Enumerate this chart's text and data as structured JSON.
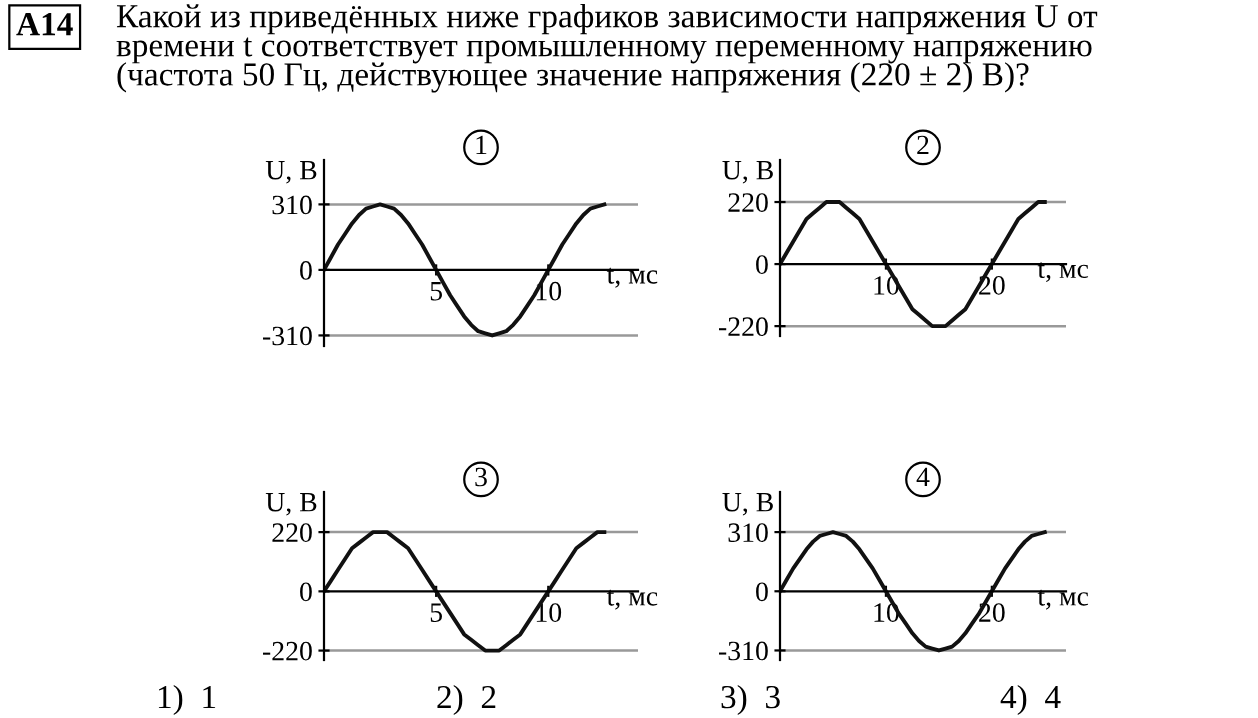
{
  "chart_data": [
    {
      "type": "line",
      "title": "1",
      "xlabel": "t, мс",
      "ylabel": "U, В",
      "annotations": [
        "A14",
        "Какой из приведённых ниже графиков зависимости напряжения U от\nвремени t соответствует промышленному переменному напряжению\n(частота 50 Гц, действующее значение напряжения (220 ± 2) В)?",
        "1)  1",
        "2)  2",
        "3)  3",
        "4)  4"
      ],
      "series": [
        {
          "color": "#111111",
          "x": [
            0,
            0.3125,
            0.625,
            0.9375,
            1.25,
            1.5625,
            1.875,
            2.1875,
            2.5,
            2.8125,
            3.125,
            3.4375,
            3.75,
            4.0625,
            4.375,
            4.6875,
            5,
            5.3125,
            5.625,
            5.9375,
            6.25,
            6.5625,
            6.875,
            7.1875,
            7.5,
            7.8125,
            8.125,
            8.4375,
            8.75,
            9.0625,
            9.375,
            9.6875,
            10,
            10.3125,
            10.625,
            10.9375,
            11.25,
            11.5625,
            11.875,
            12.1875,
            12.5
          ],
          "values": [
            0,
            60,
            120,
            170,
            220,
            260,
            290,
            300,
            310,
            300,
            290,
            260,
            220,
            170,
            120,
            60,
            0,
            -60,
            -120,
            -170,
            -220,
            -260,
            -290,
            -300,
            -310,
            -300,
            -290,
            -260,
            -220,
            -170,
            -120,
            -60,
            0,
            60,
            120,
            170,
            220,
            260,
            290,
            300,
            310
          ]
        }
      ],
      "xlim": [
        0,
        14
      ],
      "ylim": [
        -360,
        520
      ],
      "xticks": [
        5,
        10
      ],
      "yticks": [
        -310,
        0,
        310
      ],
      "ref_lines": [
        {
          "axis": "y",
          "value": 310,
          "color": "#999999"
        },
        {
          "axis": "y",
          "value": -310,
          "color": "#999999"
        }
      ]
    },
    {
      "type": "line",
      "title": "2",
      "xlabel": "t, мс",
      "ylabel": "U, В",
      "series": [
        {
          "color": "#111111",
          "x": [
            0,
            0.625,
            1.25,
            1.875,
            2.5,
            3.125,
            3.75,
            4.375,
            5,
            5.625,
            6.25,
            6.875,
            7.5,
            8.125,
            8.75,
            9.375,
            10,
            10.625,
            11.25,
            11.875,
            12.5,
            13.125,
            13.75,
            14.375,
            15,
            15.625,
            16.25,
            16.875,
            17.5,
            18.125,
            18.75,
            19.375,
            20,
            20.625,
            21.25,
            21.875,
            22.5,
            23.125,
            23.75,
            24.375,
            25
          ],
          "values": [
            0,
            40,
            80,
            120,
            160,
            180,
            200,
            220,
            220,
            220,
            200,
            180,
            160,
            120,
            80,
            40,
            0,
            -40,
            -80,
            -120,
            -160,
            -180,
            -200,
            -220,
            -220,
            -220,
            -200,
            -180,
            -160,
            -120,
            -80,
            -40,
            0,
            40,
            80,
            120,
            160,
            180,
            200,
            220,
            220
          ]
        }
      ],
      "xlim": [
        0,
        27
      ],
      "ylim": [
        -255,
        369
      ],
      "xticks": [
        10,
        20
      ],
      "yticks": [
        -220,
        0,
        220
      ],
      "ref_lines": [
        {
          "axis": "y",
          "value": 220,
          "color": "#999999"
        },
        {
          "axis": "y",
          "value": -220,
          "color": "#999999"
        }
      ]
    },
    {
      "type": "line",
      "title": "3",
      "xlabel": "t, мс",
      "ylabel": "U, В",
      "series": [
        {
          "color": "#111111",
          "x": [
            0,
            0.3125,
            0.625,
            0.9375,
            1.25,
            1.5625,
            1.875,
            2.1875,
            2.5,
            2.8125,
            3.125,
            3.4375,
            3.75,
            4.0625,
            4.375,
            4.6875,
            5,
            5.3125,
            5.625,
            5.9375,
            6.25,
            6.5625,
            6.875,
            7.1875,
            7.5,
            7.8125,
            8.125,
            8.4375,
            8.75,
            9.0625,
            9.375,
            9.6875,
            10,
            10.3125,
            10.625,
            10.9375,
            11.25,
            11.5625,
            11.875,
            12.1875,
            12.5
          ],
          "values": [
            0,
            40,
            80,
            120,
            160,
            180,
            200,
            220,
            220,
            220,
            200,
            180,
            160,
            120,
            80,
            40,
            0,
            -40,
            -80,
            -120,
            -160,
            -180,
            -200,
            -220,
            -220,
            -220,
            -200,
            -180,
            -160,
            -120,
            -80,
            -40,
            0,
            40,
            80,
            120,
            160,
            180,
            200,
            220,
            220
          ]
        }
      ],
      "xlim": [
        0,
        14
      ],
      "ylim": [
        -255,
        369
      ],
      "xticks": [
        5,
        10
      ],
      "yticks": [
        -220,
        0,
        220
      ],
      "ref_lines": [
        {
          "axis": "y",
          "value": 220,
          "color": "#999999"
        },
        {
          "axis": "y",
          "value": -220,
          "color": "#999999"
        }
      ]
    },
    {
      "type": "line",
      "title": "4",
      "xlabel": "t, мс",
      "ylabel": "U, В",
      "series": [
        {
          "color": "#111111",
          "x": [
            0,
            0.625,
            1.25,
            1.875,
            2.5,
            3.125,
            3.75,
            4.375,
            5,
            5.625,
            6.25,
            6.875,
            7.5,
            8.125,
            8.75,
            9.375,
            10,
            10.625,
            11.25,
            11.875,
            12.5,
            13.125,
            13.75,
            14.375,
            15,
            15.625,
            16.25,
            16.875,
            17.5,
            18.125,
            18.75,
            19.375,
            20,
            20.625,
            21.25,
            21.875,
            22.5,
            23.125,
            23.75,
            24.375,
            25
          ],
          "values": [
            0,
            60,
            120,
            170,
            220,
            260,
            290,
            300,
            310,
            300,
            290,
            260,
            220,
            170,
            120,
            60,
            0,
            -60,
            -120,
            -170,
            -220,
            -260,
            -290,
            -300,
            -310,
            -300,
            -290,
            -260,
            -220,
            -170,
            -120,
            -60,
            0,
            60,
            120,
            170,
            220,
            260,
            290,
            300,
            310
          ]
        }
      ],
      "xlim": [
        0,
        27
      ],
      "ylim": [
        -360,
        520
      ],
      "xticks": [
        10,
        20
      ],
      "yticks": [
        -310,
        0,
        310
      ],
      "ref_lines": [
        {
          "axis": "y",
          "value": 310,
          "color": "#999999"
        },
        {
          "axis": "y",
          "value": -310,
          "color": "#999999"
        }
      ]
    }
  ]
}
